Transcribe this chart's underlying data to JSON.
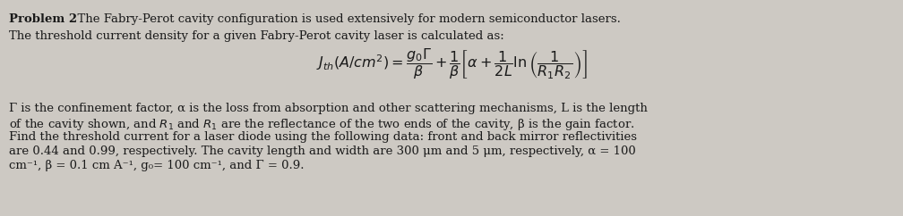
{
  "background_color": "#cdc9c3",
  "text_color": "#1a1a1a",
  "bold_label": "Problem 2",
  "line1_rest": ". The Fabry-Perot cavity configuration is used extensively for modern semiconductor lasers.",
  "line2": "The threshold current density for a given Fabry-Perot cavity laser is calculated as:",
  "formula": "$J_{th}(A/cm^2) = \\dfrac{g_0\\Gamma}{\\beta} + \\dfrac{1}{\\beta}\\left[\\alpha + \\dfrac{1}{2L}\\ln\\left(\\dfrac{1}{R_1 R_2}\\right)\\right]$",
  "body_line1": "Γ is the confinement factor, α is the loss from absorption and other scattering mechanisms, L is the length",
  "body_line2": "of the cavity shown, and $R_1$ and $R_1$ are the reflectance of the two ends of the cavity, β is the gain factor.",
  "body_line3": "Find the threshold current for a laser diode using the following data: front and back mirror reflectivities",
  "body_line4": "are 0.44 and 0.99, respectively. The cavity length and width are 300 μm and 5 μm, respectively, α = 100",
  "body_line5": "cm⁻¹, β = 0.1 cm A⁻¹, g₀= 100 cm⁻¹, and Γ = 0.9.",
  "fontsize": 9.5,
  "fontsize_formula": 11.5,
  "fig_width": 10.08,
  "fig_height": 2.42,
  "dpi": 100
}
